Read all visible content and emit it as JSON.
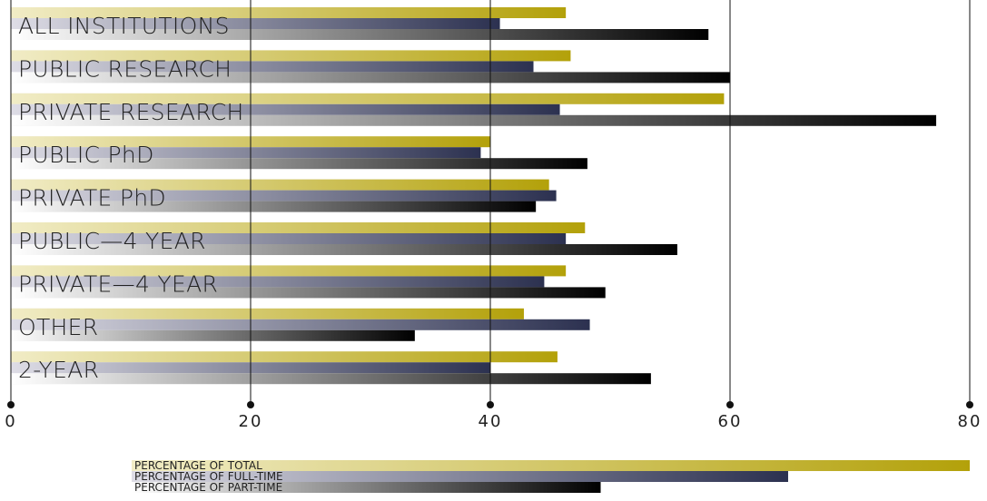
{
  "chart_data": {
    "type": "bar",
    "orientation": "horizontal",
    "categories": [
      "ALL INSTITUTIONS",
      "PUBLIC RESEARCH",
      "PRIVATE RESEARCH",
      "PUBLIC PhD",
      "PRIVATE PhD",
      "PUBLIC—4 YEAR",
      "PRIVATE—4 YEAR",
      "OTHER",
      "2-YEAR"
    ],
    "series": [
      {
        "name": "PERCENTAGE OF TOTAL",
        "values": [
          46.3,
          46.7,
          59.5,
          40.0,
          44.9,
          47.9,
          46.3,
          42.8,
          45.6
        ]
      },
      {
        "name": "PERCENTAGE OF FULL-TIME",
        "values": [
          40.8,
          43.6,
          45.8,
          39.2,
          45.5,
          46.3,
          44.5,
          48.3,
          40.0
        ]
      },
      {
        "name": "PERCENTAGE OF PART-TIME",
        "values": [
          58.2,
          60.0,
          77.2,
          48.1,
          43.8,
          55.6,
          49.6,
          33.7,
          53.4
        ]
      }
    ],
    "xlim": [
      0,
      80
    ],
    "xticks": [
      "0",
      "20",
      "40",
      "60",
      "80"
    ],
    "grid": true,
    "legend_placement": "bottom"
  },
  "colors": {
    "total_start": "#f1ecc6",
    "total_end": "#b3a10a",
    "fulltime_start": "#dedde6",
    "fulltime_end": "#2c3150",
    "parttime_start": "#ffffff",
    "parttime_end": "#000000"
  }
}
